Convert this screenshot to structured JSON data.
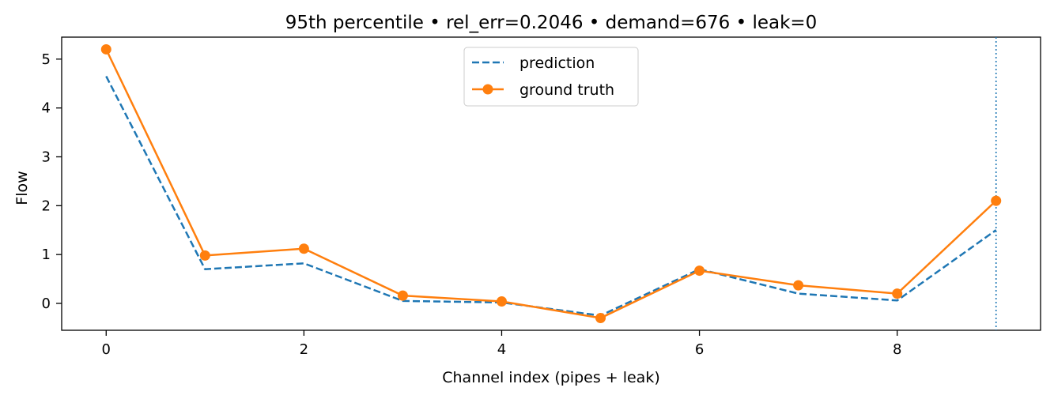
{
  "chart_data": {
    "type": "line",
    "title": "95th percentile • rel_err=0.2046 • demand=676 • leak=0",
    "xlabel": "Channel index (pipes + leak)",
    "ylabel": "Flow",
    "xlim": [
      -0.45,
      9.45
    ],
    "ylim": [
      -0.55,
      5.45
    ],
    "x_ticks": [
      0,
      2,
      4,
      6,
      8
    ],
    "y_ticks": [
      0,
      1,
      2,
      3,
      4,
      5
    ],
    "grid": false,
    "legend_position": "top-center",
    "vline_x": 9,
    "x": [
      0,
      1,
      2,
      3,
      4,
      5,
      6,
      7,
      8,
      9
    ],
    "series": [
      {
        "name": "prediction",
        "style": "dashed",
        "color": "#1f77b4",
        "values": [
          4.65,
          0.7,
          0.82,
          0.05,
          0.02,
          -0.25,
          0.7,
          0.2,
          0.06,
          1.5
        ]
      },
      {
        "name": "ground truth",
        "style": "solid-markers",
        "color": "#ff7f0e",
        "values": [
          5.2,
          0.98,
          1.12,
          0.16,
          0.04,
          -0.3,
          0.67,
          0.37,
          0.2,
          2.1
        ]
      }
    ]
  }
}
